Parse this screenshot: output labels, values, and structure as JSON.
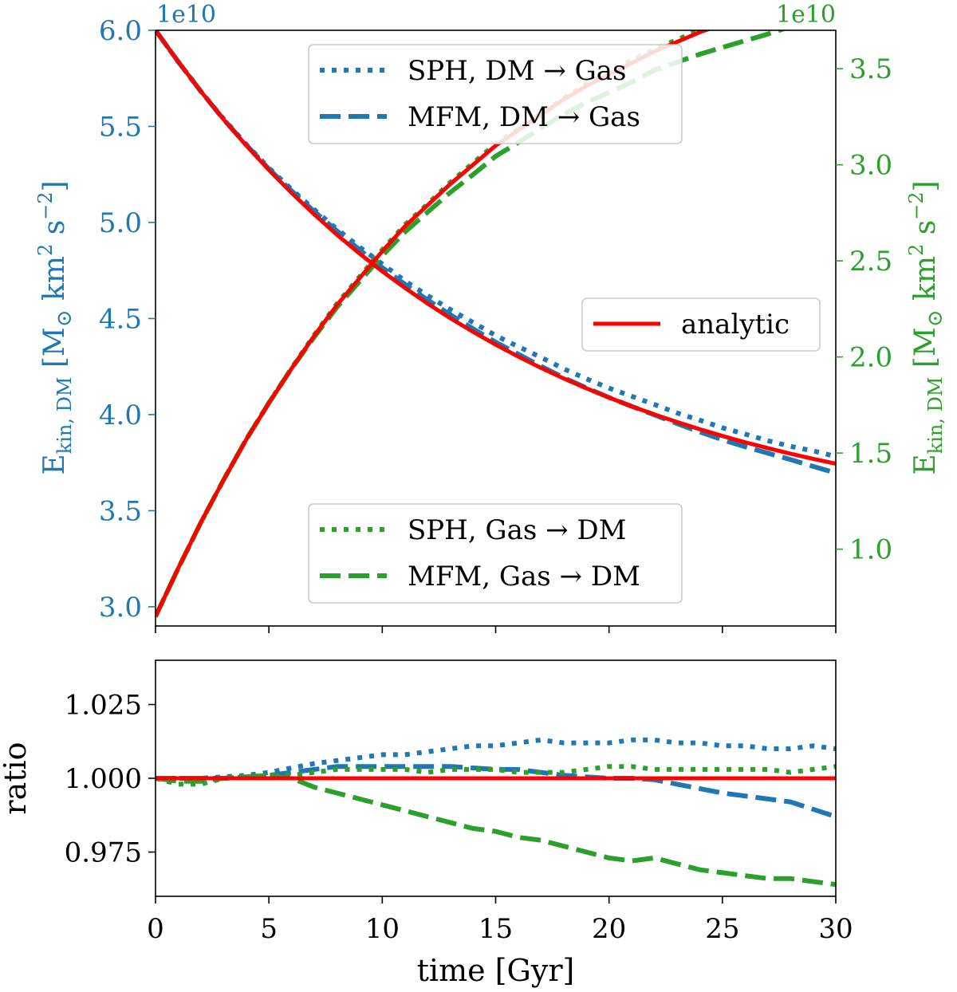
{
  "colors": {
    "blue": "#1f77b4",
    "green": "#2ca02c",
    "red": "#ff0000",
    "axis": "#000000",
    "legend_border": "#cccccc"
  },
  "chart_data": [
    {
      "type": "line",
      "role": "top-panel",
      "x_range": [
        0,
        30
      ],
      "ylim_left": [
        2.9,
        6.0
      ],
      "ylim_right": [
        0.6,
        3.7
      ],
      "scale_label_left": "1e10",
      "scale_label_right": "1e10",
      "ylabel_left": "E_kin,DM [M⊙ km² s⁻²]",
      "ylabel_right": "E_kin,DM [M⊙ km² s⁻²]",
      "yticks_left": [
        3.0,
        3.5,
        4.0,
        4.5,
        5.0,
        5.5,
        6.0
      ],
      "yticks_left_labels": [
        "3.0",
        "3.5",
        "4.0",
        "4.5",
        "5.0",
        "5.5",
        "6.0"
      ],
      "yticks_right": [
        1.0,
        1.5,
        2.0,
        2.5,
        3.0,
        3.5
      ],
      "yticks_right_labels": [
        "1.0",
        "1.5",
        "2.0",
        "2.5",
        "3.0",
        "3.5"
      ],
      "xticks": [
        0,
        5,
        10,
        15,
        20,
        25,
        30
      ],
      "x": [
        0,
        1,
        2,
        3,
        4,
        5,
        6,
        7,
        8,
        9,
        10,
        11,
        12,
        13,
        14,
        15,
        16,
        17,
        18,
        19,
        20,
        21,
        22,
        23,
        24,
        25,
        26,
        27,
        28,
        29,
        30
      ],
      "series": [
        {
          "name": "analytic",
          "axis": "left",
          "style": "solid",
          "color": "red",
          "values": [
            6.0,
            5.837,
            5.682,
            5.537,
            5.401,
            5.273,
            5.154,
            5.042,
            4.936,
            4.838,
            4.746,
            4.659,
            4.578,
            4.502,
            4.431,
            4.364,
            4.302,
            4.243,
            4.188,
            4.137,
            4.089,
            4.043,
            4.001,
            3.961,
            3.924,
            3.889,
            3.856,
            3.826,
            3.797,
            3.77,
            3.745
          ]
        },
        {
          "name": "analytic",
          "axis": "right",
          "style": "solid",
          "color": "red",
          "values": [
            0.65,
            0.9,
            1.14,
            1.36,
            1.57,
            1.76,
            1.94,
            2.11,
            2.27,
            2.41,
            2.55,
            2.68,
            2.79,
            2.9,
            3.0,
            3.1,
            3.18,
            3.26,
            3.34,
            3.41,
            3.47,
            3.53,
            3.59,
            3.64,
            3.69,
            3.73,
            3.77,
            3.81,
            3.85,
            3.88,
            3.91
          ]
        },
        {
          "name": "SPH, DM → Gas",
          "axis": "left",
          "style": "dotted",
          "color": "blue",
          "ratio": [
            1.0,
            1.0,
            1.0,
            1.0005,
            1.001,
            1.002,
            1.0035,
            1.005,
            1.006,
            1.007,
            1.008,
            1.008,
            1.009,
            1.01,
            1.011,
            1.011,
            1.012,
            1.013,
            1.012,
            1.012,
            1.012,
            1.013,
            1.013,
            1.012,
            1.012,
            1.011,
            1.011,
            1.01,
            1.01,
            1.011,
            1.01
          ]
        },
        {
          "name": "MFM, DM → Gas",
          "axis": "left",
          "style": "dashed",
          "color": "blue",
          "ratio": [
            1.0,
            1.0,
            1.0,
            1.0,
            1.0005,
            1.001,
            1.002,
            1.003,
            1.004,
            1.004,
            1.004,
            1.004,
            1.004,
            1.004,
            1.0035,
            1.003,
            1.003,
            1.002,
            1.001,
            1.0005,
            1.0,
            1.0,
            0.9995,
            0.998,
            0.9965,
            0.995,
            0.994,
            0.993,
            0.992,
            0.9895,
            0.987
          ]
        },
        {
          "name": "SPH, Gas → DM",
          "axis": "right",
          "style": "dotted",
          "color": "green",
          "ratio": [
            1.0,
            0.998,
            0.998,
            1.0,
            1.0005,
            1.001,
            1.001,
            1.002,
            1.003,
            1.003,
            1.003,
            1.003,
            1.002,
            1.003,
            1.003,
            1.003,
            1.002,
            1.002,
            1.002,
            1.003,
            1.004,
            1.004,
            1.003,
            1.003,
            1.003,
            1.003,
            1.003,
            1.003,
            1.002,
            1.003,
            1.004
          ]
        },
        {
          "name": "MFM, Gas → DM",
          "axis": "right",
          "style": "dashed",
          "color": "green",
          "ratio": [
            1.0,
            0.999,
            0.999,
            1.0,
            1.0005,
            1.001,
            1.0,
            0.997,
            0.995,
            0.993,
            0.991,
            0.989,
            0.987,
            0.985,
            0.983,
            0.982,
            0.98,
            0.979,
            0.977,
            0.975,
            0.973,
            0.972,
            0.973,
            0.971,
            0.969,
            0.968,
            0.967,
            0.966,
            0.966,
            0.965,
            0.964
          ]
        }
      ],
      "legend_top": [
        "SPH, DM → Gas",
        "MFM, DM → Gas"
      ],
      "legend_middle": [
        "analytic"
      ],
      "legend_bottom": [
        "SPH, Gas → DM",
        "MFM, Gas → DM"
      ]
    },
    {
      "type": "line",
      "role": "bottom-panel",
      "x_range": [
        0,
        30
      ],
      "ylim": [
        0.96,
        1.04
      ],
      "ylabel": "ratio",
      "xlabel": "time [Gyr]",
      "yticks": [
        0.975,
        1.0,
        1.025
      ],
      "yticks_labels": [
        "0.975",
        "1.000",
        "1.025"
      ],
      "xticks": [
        0,
        5,
        10,
        15,
        20,
        25,
        30
      ],
      "xticks_labels": [
        "0",
        "5",
        "10",
        "15",
        "20",
        "25",
        "30"
      ]
    }
  ]
}
